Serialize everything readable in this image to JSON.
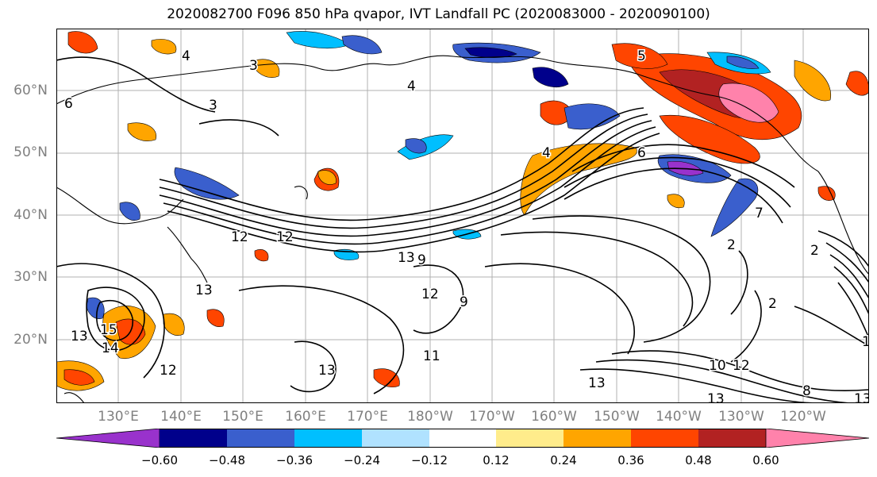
{
  "title": "2020082700 F096 850 hPa qvapor, IVT Landfall PC (2020083000 - 2020090100)",
  "lat_labels": [
    "60°N",
    "50°N",
    "40°N",
    "30°N",
    "20°N"
  ],
  "lon_labels": [
    "130°E",
    "140°E",
    "150°E",
    "160°E",
    "170°E",
    "180°W",
    "170°W",
    "160°W",
    "150°W",
    "140°W",
    "130°W",
    "120°W"
  ],
  "contour_labels": [
    "4",
    "3",
    "6",
    "3",
    "4",
    "4",
    "6",
    "5",
    "7",
    "12",
    "12",
    "13",
    "9",
    "12",
    "9",
    "13",
    "15",
    "14",
    "13",
    "12",
    "13",
    "11",
    "13",
    "10",
    "12",
    "2",
    "2",
    "2",
    "13",
    "8",
    "1",
    "13"
  ],
  "colorbar": {
    "colors": [
      "#9932cc",
      "#00008b",
      "#3a5fcd",
      "#00bfff",
      "#b0e2ff",
      "#ffffff",
      "#ffec8b",
      "#ffa500",
      "#ff4500",
      "#b22222",
      "#ff82ab"
    ],
    "tick_labels": [
      "−0.60",
      "−0.48",
      "−0.36",
      "−0.24",
      "−0.12",
      "0.12",
      "0.24",
      "0.36",
      "0.48",
      "0.60"
    ]
  }
}
